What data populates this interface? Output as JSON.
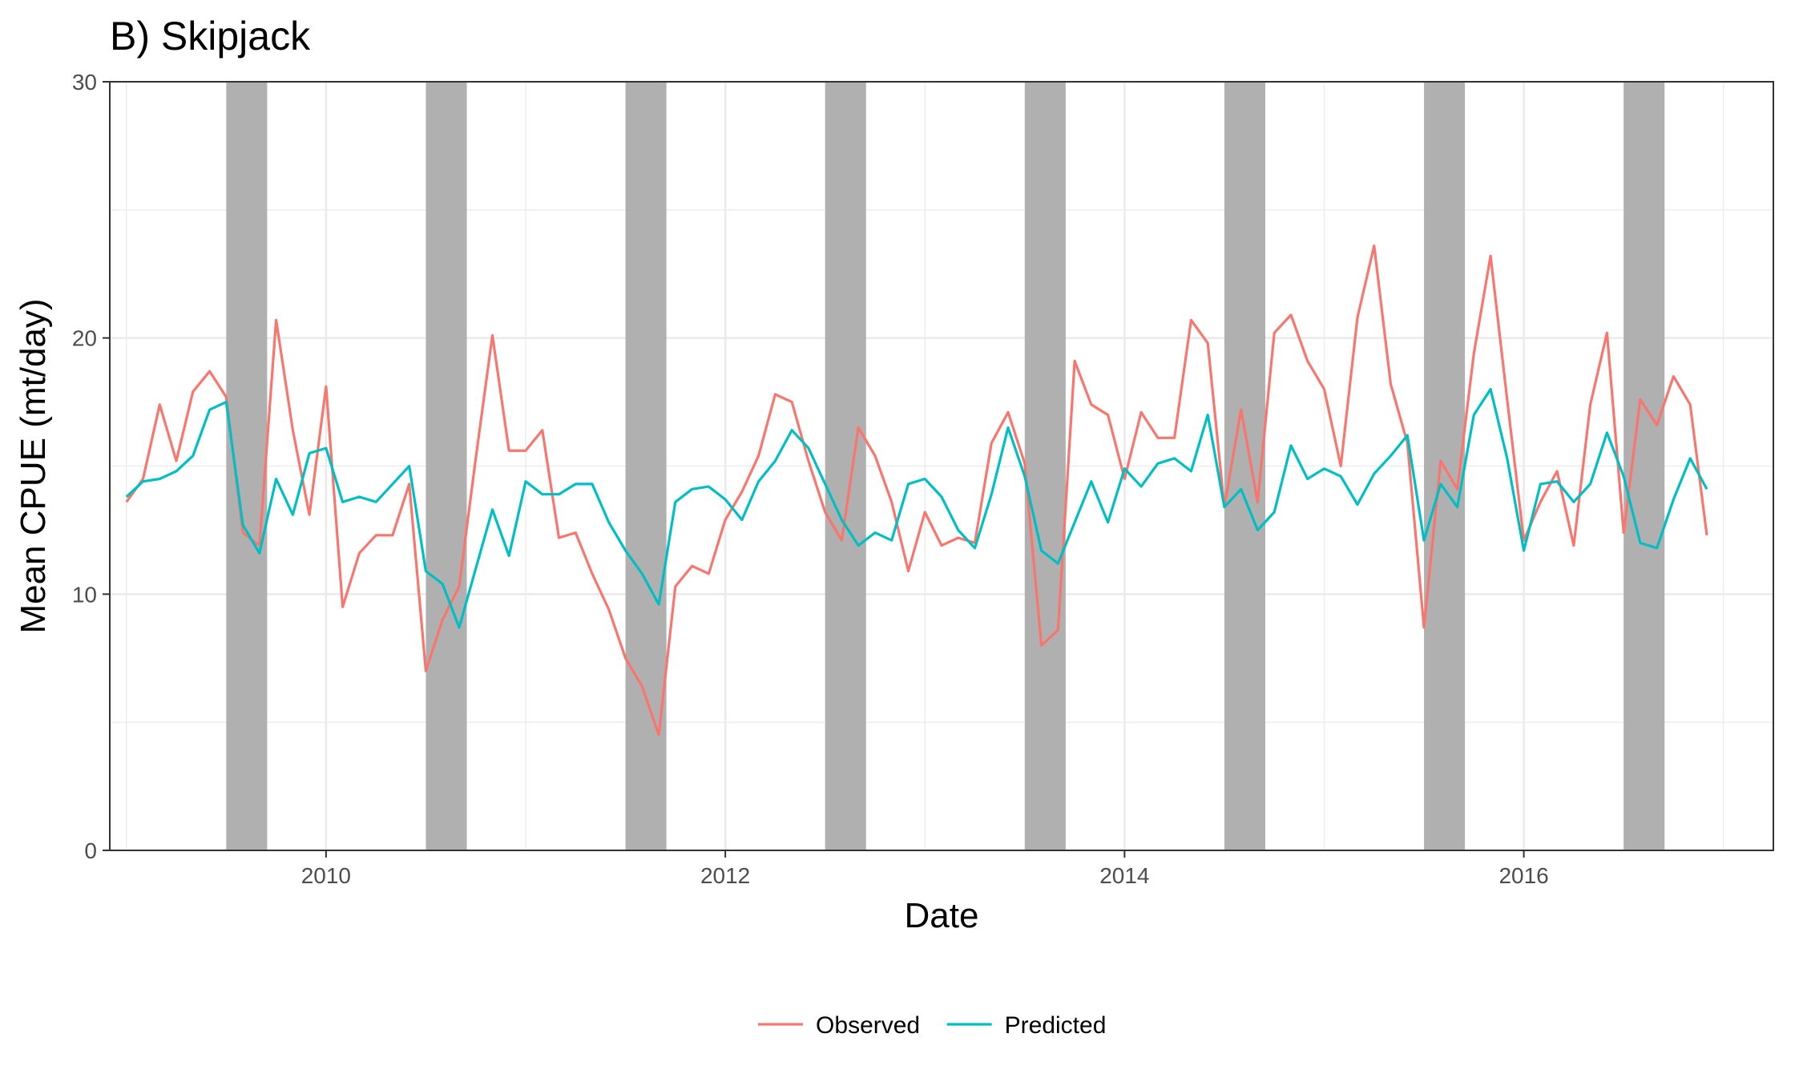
{
  "chart_data": {
    "type": "line",
    "title": "B) Skipjack",
    "xlabel": "Date",
    "ylabel": "Mean CPUE (mt/day)",
    "xlim": [
      "2008-12-01",
      "2017-04-01"
    ],
    "ylim": [
      0,
      30
    ],
    "x_ticks": [
      "2010",
      "2012",
      "2014",
      "2016"
    ],
    "y_ticks": [
      "0",
      "10",
      "20",
      "30"
    ],
    "grid": true,
    "legend_position": "bottom",
    "shaded_periods": [
      [
        "2009-07-01",
        "2009-09-15"
      ],
      [
        "2010-07-01",
        "2010-09-15"
      ],
      [
        "2011-07-01",
        "2011-09-15"
      ],
      [
        "2012-07-01",
        "2012-09-15"
      ],
      [
        "2013-07-01",
        "2013-09-15"
      ],
      [
        "2014-07-01",
        "2014-09-15"
      ],
      [
        "2015-07-01",
        "2015-09-15"
      ],
      [
        "2016-07-01",
        "2016-09-15"
      ]
    ],
    "x": [
      "2009-01",
      "2009-02",
      "2009-03",
      "2009-04",
      "2009-05",
      "2009-06",
      "2009-07",
      "2009-08",
      "2009-09",
      "2009-10",
      "2009-11",
      "2009-12",
      "2010-01",
      "2010-02",
      "2010-03",
      "2010-04",
      "2010-05",
      "2010-06",
      "2010-07",
      "2010-08",
      "2010-09",
      "2010-10",
      "2010-11",
      "2010-12",
      "2011-01",
      "2011-02",
      "2011-03",
      "2011-04",
      "2011-05",
      "2011-06",
      "2011-07",
      "2011-08",
      "2011-09",
      "2011-10",
      "2011-11",
      "2011-12",
      "2012-01",
      "2012-02",
      "2012-03",
      "2012-04",
      "2012-05",
      "2012-06",
      "2012-07",
      "2012-08",
      "2012-09",
      "2012-10",
      "2012-11",
      "2012-12",
      "2013-01",
      "2013-02",
      "2013-03",
      "2013-04",
      "2013-05",
      "2013-06",
      "2013-07",
      "2013-08",
      "2013-09",
      "2013-10",
      "2013-11",
      "2013-12",
      "2014-01",
      "2014-02",
      "2014-03",
      "2014-04",
      "2014-05",
      "2014-06",
      "2014-07",
      "2014-08",
      "2014-09",
      "2014-10",
      "2014-11",
      "2014-12",
      "2015-01",
      "2015-02",
      "2015-03",
      "2015-04",
      "2015-05",
      "2015-06",
      "2015-07",
      "2015-08",
      "2015-09",
      "2015-10",
      "2015-11",
      "2015-12",
      "2016-01",
      "2016-02",
      "2016-03",
      "2016-04",
      "2016-05",
      "2016-06",
      "2016-07",
      "2016-08",
      "2016-09",
      "2016-10",
      "2016-11",
      "2016-12"
    ],
    "series": [
      {
        "name": "Observed",
        "color": "#F8766D",
        "values": [
          13.6,
          14.5,
          17.4,
          15.2,
          17.9,
          18.7,
          17.7,
          12.4,
          11.9,
          20.7,
          16.4,
          13.1,
          18.1,
          9.5,
          11.6,
          12.3,
          12.3,
          14.3,
          7.0,
          9.0,
          10.3,
          15.3,
          20.1,
          15.6,
          15.6,
          16.4,
          12.2,
          12.4,
          10.8,
          9.4,
          7.5,
          6.4,
          4.5,
          10.3,
          11.1,
          10.8,
          12.9,
          14.0,
          15.4,
          17.8,
          17.5,
          15.2,
          13.2,
          12.1,
          16.5,
          15.4,
          13.6,
          10.9,
          13.2,
          11.9,
          12.2,
          12.0,
          15.9,
          17.1,
          15.1,
          8.0,
          8.6,
          19.1,
          17.4,
          17.0,
          14.5,
          17.1,
          16.1,
          16.1,
          20.7,
          19.8,
          13.4,
          17.2,
          13.6,
          20.2,
          20.9,
          19.1,
          18.0,
          15.0,
          20.8,
          23.6,
          18.2,
          15.9,
          8.7,
          15.2,
          14.1,
          19.4,
          23.2,
          17.6,
          12.1,
          13.6,
          14.8,
          11.9,
          17.4,
          20.2,
          12.4,
          17.6,
          16.6,
          18.5,
          17.4,
          12.3
        ]
      },
      {
        "name": "Predicted",
        "color": "#00BFC4",
        "values": [
          13.8,
          14.4,
          14.5,
          14.8,
          15.4,
          17.2,
          17.5,
          12.7,
          11.6,
          14.5,
          13.1,
          15.5,
          15.7,
          13.6,
          13.8,
          13.6,
          14.3,
          15.0,
          10.9,
          10.4,
          8.7,
          11.0,
          13.3,
          11.5,
          14.4,
          13.9,
          13.9,
          14.3,
          14.3,
          12.8,
          11.7,
          10.8,
          9.6,
          13.6,
          14.1,
          14.2,
          13.7,
          12.9,
          14.4,
          15.2,
          16.4,
          15.7,
          14.3,
          12.9,
          11.9,
          12.4,
          12.1,
          14.3,
          14.5,
          13.8,
          12.5,
          11.8,
          13.9,
          16.5,
          14.6,
          11.7,
          11.2,
          12.8,
          14.4,
          12.8,
          14.9,
          14.2,
          15.1,
          15.3,
          14.8,
          17.0,
          13.4,
          14.1,
          12.5,
          13.2,
          15.8,
          14.5,
          14.9,
          14.6,
          13.5,
          14.7,
          15.4,
          16.2,
          12.1,
          14.3,
          13.4,
          17.0,
          18.0,
          15.3,
          11.7,
          14.3,
          14.4,
          13.6,
          14.3,
          16.3,
          14.6,
          12.0,
          11.8,
          13.7,
          15.3,
          14.1
        ]
      }
    ]
  }
}
